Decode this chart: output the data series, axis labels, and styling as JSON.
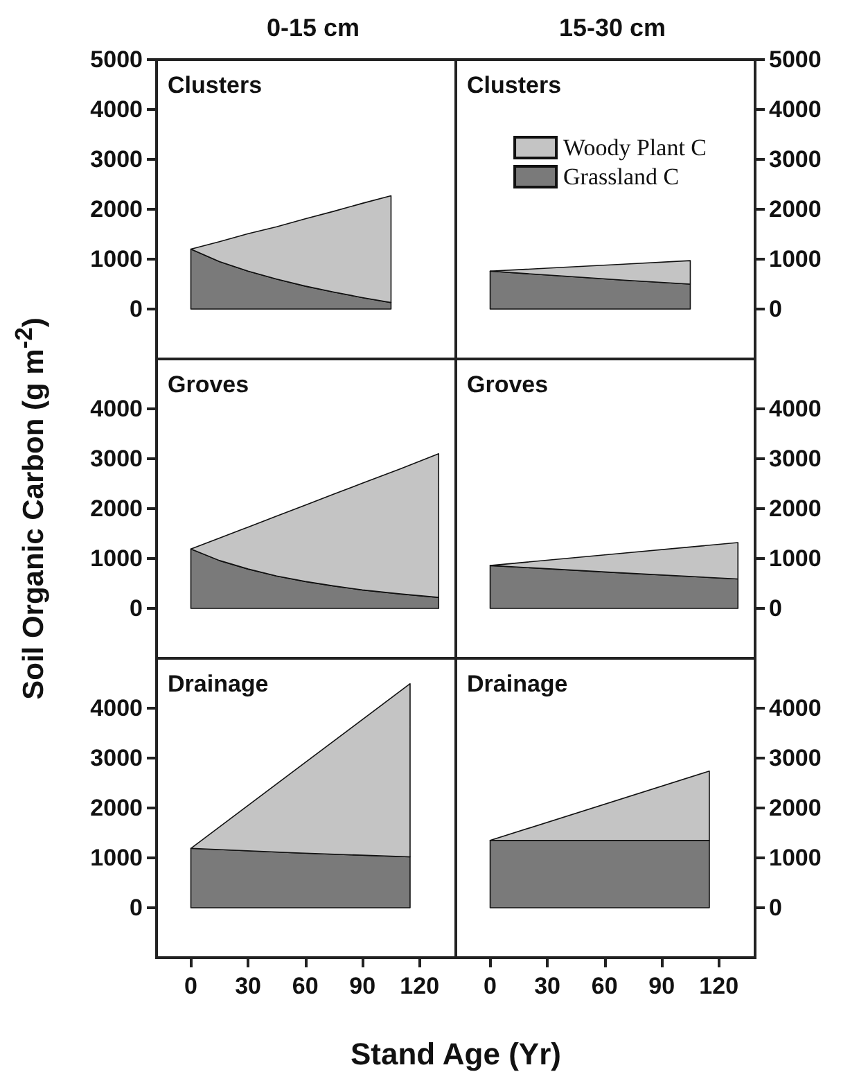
{
  "chart_data": [
    {
      "type": "area",
      "title": "0-15 cm",
      "annotations": [
        "Clusters"
      ],
      "stacked": true,
      "xlim": [
        -18,
        139
      ],
      "xticks": [
        0,
        30,
        60,
        90,
        120
      ],
      "ylim": [
        -1000,
        5000
      ],
      "yticks": [
        0,
        1000,
        2000,
        3000,
        4000,
        5000
      ],
      "tick_labels": "y",
      "grid": false,
      "legend": false,
      "x": [
        0,
        15,
        30,
        45,
        60,
        75,
        90,
        105
      ],
      "series": [
        {
          "color": "#7a7a7a",
          "values": [
            1200,
            950,
            760,
            600,
            460,
            340,
            230,
            130
          ]
        },
        {
          "color": "#c4c4c4",
          "values": [
            0,
            400,
            750,
            1050,
            1350,
            1620,
            1890,
            2140
          ]
        }
      ]
    },
    {
      "type": "area",
      "title": "15-30 cm",
      "annotations": [
        "Clusters"
      ],
      "stacked": true,
      "xlim": [
        -18,
        139
      ],
      "xticks": [
        0,
        30,
        60,
        90,
        120
      ],
      "y2lim": [
        -1000,
        5000
      ],
      "y2ticks": [
        0,
        1000,
        2000,
        3000,
        4000,
        5000
      ],
      "tick_labels": "y",
      "grid": false,
      "legend": "top right",
      "x": [
        0,
        35,
        70,
        105
      ],
      "series": [
        {
          "name": "Grassland C",
          "color": "#7a7a7a",
          "axis": "y2",
          "values": [
            760,
            670,
            580,
            500
          ]
        },
        {
          "name": "Woody Plant C",
          "color": "#c4c4c4",
          "axis": "y2",
          "values": [
            0,
            160,
            320,
            470
          ]
        }
      ]
    },
    {
      "type": "area",
      "annotations": [
        "Groves"
      ],
      "ylabel": "Soil Organic Carbon (g m$^{-2}$)",
      "stacked": true,
      "xlim": [
        -18,
        139
      ],
      "xticks": [
        0,
        30,
        60,
        90,
        120
      ],
      "ylim": [
        -1000,
        5000
      ],
      "yticks": [
        0,
        1000,
        2000,
        3000,
        4000
      ],
      "tick_labels": "y",
      "grid": false,
      "legend": false,
      "x": [
        0,
        15,
        30,
        45,
        60,
        75,
        90,
        110,
        130
      ],
      "series": [
        {
          "color": "#7a7a7a",
          "values": [
            1190,
            960,
            790,
            650,
            540,
            450,
            370,
            290,
            220
          ]
        },
        {
          "color": "#c4c4c4",
          "values": [
            0,
            450,
            840,
            1200,
            1530,
            1840,
            2140,
            2510,
            2880
          ]
        }
      ]
    },
    {
      "type": "area",
      "annotations": [
        "Groves"
      ],
      "stacked": true,
      "xlim": [
        -18,
        139
      ],
      "xticks": [
        0,
        30,
        60,
        90,
        120
      ],
      "y2lim": [
        -1000,
        5000
      ],
      "y2ticks": [
        0,
        1000,
        2000,
        3000,
        4000
      ],
      "tick_labels": "y",
      "grid": false,
      "legend": false,
      "x": [
        0,
        65,
        130
      ],
      "series": [
        {
          "color": "#7a7a7a",
          "axis": "y2",
          "values": [
            860,
            720,
            590
          ]
        },
        {
          "color": "#c4c4c4",
          "axis": "y2",
          "values": [
            0,
            370,
            730
          ]
        }
      ]
    },
    {
      "type": "area",
      "annotations": [
        "Drainage"
      ],
      "xlabel": "Stand Age (Yr)",
      "stacked": true,
      "xlim": [
        -18,
        139
      ],
      "xticks": [
        0,
        30,
        60,
        90,
        120
      ],
      "ylim": [
        -1000,
        5000
      ],
      "yticks": [
        0,
        1000,
        2000,
        3000,
        4000
      ],
      "grid": false,
      "legend": false,
      "x": [
        0,
        55,
        115
      ],
      "series": [
        {
          "color": "#7a7a7a",
          "values": [
            1190,
            1100,
            1020
          ]
        },
        {
          "color": "#c4c4c4",
          "values": [
            0,
            1670,
            3470
          ]
        }
      ]
    },
    {
      "type": "area",
      "annotations": [
        "Drainage"
      ],
      "stacked": true,
      "xlim": [
        -18,
        139
      ],
      "xticks": [
        0,
        30,
        60,
        90,
        120
      ],
      "y2lim": [
        -1000,
        5000
      ],
      "y2ticks": [
        0,
        1000,
        2000,
        3000,
        4000
      ],
      "grid": false,
      "legend": false,
      "x": [
        0,
        115
      ],
      "series": [
        {
          "color": "#7a7a7a",
          "axis": "y2",
          "values": [
            1350,
            1350
          ]
        },
        {
          "color": "#c4c4c4",
          "axis": "y2",
          "values": [
            0,
            1390
          ]
        }
      ]
    }
  ]
}
